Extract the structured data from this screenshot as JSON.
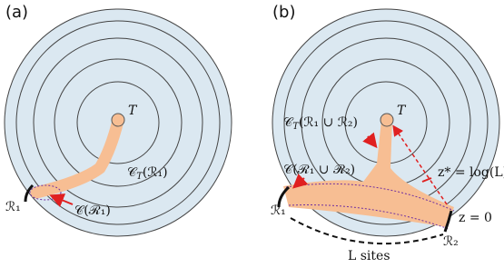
{
  "panels": [
    {
      "label": "(a)",
      "root": "T",
      "tree_label": {
        "base": "𝒞",
        "sub": "T",
        "arg": "(ℛ₁)"
      },
      "cut_label": "𝒞(ℛ₁)",
      "region": "ℛ₁"
    },
    {
      "label": "(b)",
      "root": "T",
      "tree_label": {
        "base": "𝒞",
        "sub": "T",
        "arg": "(ℛ₁ ∪ ℛ₂)"
      },
      "cut_label": "𝒞(ℛ₁ ∪ ℛ₂)",
      "region1": "ℛ₁",
      "region2": "ℛ₂",
      "depth_label": "z* = log(L)",
      "base_label": "z = 0",
      "sites_label": "L sites"
    }
  ]
}
